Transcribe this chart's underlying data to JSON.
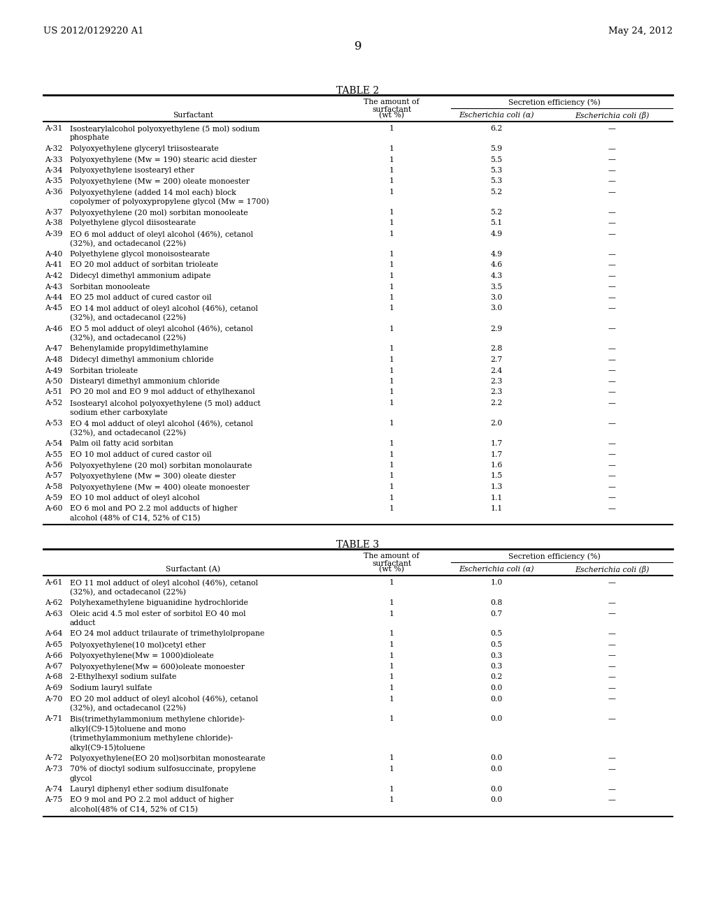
{
  "header_left": "US 2012/0129220 A1",
  "header_right": "May 24, 2012",
  "page_number": "9",
  "table2_title": "TABLE 2",
  "table2_rows": [
    [
      "A-31",
      "Isostearylalcohol polyoxyethylene (5 mol) sodium",
      "phosphate",
      "",
      "1",
      "6.2",
      "—"
    ],
    [
      "A-32",
      "Polyoxyethylene glyceryl triisostearate",
      "",
      "",
      "1",
      "5.9",
      "—"
    ],
    [
      "A-33",
      "Polyoxyethylene (Mw = 190) stearic acid diester",
      "",
      "",
      "1",
      "5.5",
      "—"
    ],
    [
      "A-34",
      "Polyoxyethylene isostearyl ether",
      "",
      "",
      "1",
      "5.3",
      "—"
    ],
    [
      "A-35",
      "Polyoxyethylene (Mw = 200) oleate monoester",
      "",
      "",
      "1",
      "5.3",
      "—"
    ],
    [
      "A-36",
      "Polyoxyethylene (added 14 mol each) block",
      "copolymer of polyoxypropylene glycol (Mw = 1700)",
      "",
      "1",
      "5.2",
      "—"
    ],
    [
      "A-37",
      "Polyoxyethylene (20 mol) sorbitan monooleate",
      "",
      "",
      "1",
      "5.2",
      "—"
    ],
    [
      "A-38",
      "Polyethylene glycol diisostearate",
      "",
      "",
      "1",
      "5.1",
      "—"
    ],
    [
      "A-39",
      "EO 6 mol adduct of oleyl alcohol (46%), cetanol",
      "(32%), and octadecanol (22%)",
      "",
      "1",
      "4.9",
      "—"
    ],
    [
      "A-40",
      "Polyethylene glycol monoisostearate",
      "",
      "",
      "1",
      "4.9",
      "—"
    ],
    [
      "A-41",
      "EO 20 mol adduct of sorbitan trioleate",
      "",
      "",
      "1",
      "4.6",
      "—"
    ],
    [
      "A-42",
      "Didecyl dimethyl ammonium adipate",
      "",
      "",
      "1",
      "4.3",
      "—"
    ],
    [
      "A-43",
      "Sorbitan monooleate",
      "",
      "",
      "1",
      "3.5",
      "—"
    ],
    [
      "A-44",
      "EO 25 mol adduct of cured castor oil",
      "",
      "",
      "1",
      "3.0",
      "—"
    ],
    [
      "A-45",
      "EO 14 mol adduct of oleyl alcohol (46%), cetanol",
      "(32%), and octadecanol (22%)",
      "",
      "1",
      "3.0",
      "—"
    ],
    [
      "A-46",
      "EO 5 mol adduct of oleyl alcohol (46%), cetanol",
      "(32%), and octadecanol (22%)",
      "",
      "1",
      "2.9",
      "—"
    ],
    [
      "A-47",
      "Behenylamide propyldimethylamine",
      "",
      "",
      "1",
      "2.8",
      "—"
    ],
    [
      "A-48",
      "Didecyl dimethyl ammonium chloride",
      "",
      "",
      "1",
      "2.7",
      "—"
    ],
    [
      "A-49",
      "Sorbitan trioleate",
      "",
      "",
      "1",
      "2.4",
      "—"
    ],
    [
      "A-50",
      "Distearyl dimethyl ammonium chloride",
      "",
      "",
      "1",
      "2.3",
      "—"
    ],
    [
      "A-51",
      "PO 20 mol and EO 9 mol adduct of ethylhexanol",
      "",
      "",
      "1",
      "2.3",
      "—"
    ],
    [
      "A-52",
      "Isostearyl alcohol polyoxyethylene (5 mol) adduct",
      "sodium ether carboxylate",
      "",
      "1",
      "2.2",
      "—"
    ],
    [
      "A-53",
      "EO 4 mol adduct of oleyl alcohol (46%), cetanol",
      "(32%), and octadecanol (22%)",
      "",
      "1",
      "2.0",
      "—"
    ],
    [
      "A-54",
      "Palm oil fatty acid sorbitan",
      "",
      "",
      "1",
      "1.7",
      "—"
    ],
    [
      "A-55",
      "EO 10 mol adduct of cured castor oil",
      "",
      "",
      "1",
      "1.7",
      "—"
    ],
    [
      "A-56",
      "Polyoxyethylene (20 mol) sorbitan monolaurate",
      "",
      "",
      "1",
      "1.6",
      "—"
    ],
    [
      "A-57",
      "Polyoxyethylene (Mw = 300) oleate diester",
      "",
      "",
      "1",
      "1.5",
      "—"
    ],
    [
      "A-58",
      "Polyoxyethylene (Mw = 400) oleate monoester",
      "",
      "",
      "1",
      "1.3",
      "—"
    ],
    [
      "A-59",
      "EO 10 mol adduct of oleyl alcohol",
      "",
      "",
      "1",
      "1.1",
      "—"
    ],
    [
      "A-60",
      "EO 6 mol and PO 2.2 mol adducts of higher",
      "alcohol (48% of C14, 52% of C15)",
      "",
      "1",
      "1.1",
      "—"
    ]
  ],
  "table3_title": "TABLE 3",
  "table3_rows": [
    [
      "A-61",
      "EO 11 mol adduct of oleyl alcohol (46%), cetanol",
      "(32%), and octadecanol (22%)",
      "",
      "1",
      "1.0",
      "—"
    ],
    [
      "A-62",
      "Polyhexamethylene biguanidine hydrochloride",
      "",
      "",
      "1",
      "0.8",
      "—"
    ],
    [
      "A-63",
      "Oleic acid 4.5 mol ester of sorbitol EO 40 mol",
      "adduct",
      "",
      "1",
      "0.7",
      "—"
    ],
    [
      "A-64",
      "EO 24 mol adduct trilaurate of trimethylolpropane",
      "",
      "",
      "1",
      "0.5",
      "—"
    ],
    [
      "A-65",
      "Polyoxyethylene(10 mol)cetyl ether",
      "",
      "",
      "1",
      "0.5",
      "—"
    ],
    [
      "A-66",
      "Polyoxyethylene(Mw = 1000)dioleate",
      "",
      "",
      "1",
      "0.3",
      "—"
    ],
    [
      "A-67",
      "Polyoxyethylene(Mw = 600)oleate monoester",
      "",
      "",
      "1",
      "0.3",
      "—"
    ],
    [
      "A-68",
      "2-Ethylhexyl sodium sulfate",
      "",
      "",
      "1",
      "0.2",
      "—"
    ],
    [
      "A-69",
      "Sodium lauryl sulfate",
      "",
      "",
      "1",
      "0.0",
      "—"
    ],
    [
      "A-70",
      "EO 20 mol adduct of oleyl alcohol (46%), cetanol",
      "(32%), and octadecanol (22%)",
      "",
      "1",
      "0.0",
      "—"
    ],
    [
      "A-71",
      "Bis(trimethylammonium methylene chloride)-",
      "alkyl(C9-15)toluene and mono",
      "(trimethylammonium methylene chloride)-",
      "alkyl(C9-15)toluene",
      "1",
      "0.0",
      "—"
    ],
    [
      "A-72",
      "Polyoxyethylene(EO 20 mol)sorbitan monostearate",
      "",
      "",
      "1",
      "0.0",
      "—"
    ],
    [
      "A-73",
      "70% of dioctyl sodium sulfosuccinate, propylene",
      "glycol",
      "",
      "1",
      "0.0",
      "—"
    ],
    [
      "A-74",
      "Lauryl diphenyl ether sodium disulfonate",
      "",
      "",
      "1",
      "0.0",
      "—"
    ],
    [
      "A-75",
      "EO 9 mol and PO 2.2 mol adduct of higher",
      "alcohol(48% of C14, 52% of C15)",
      "",
      "1",
      "0.0",
      "—"
    ]
  ],
  "bg_color": "#ffffff",
  "text_color": "#000000"
}
